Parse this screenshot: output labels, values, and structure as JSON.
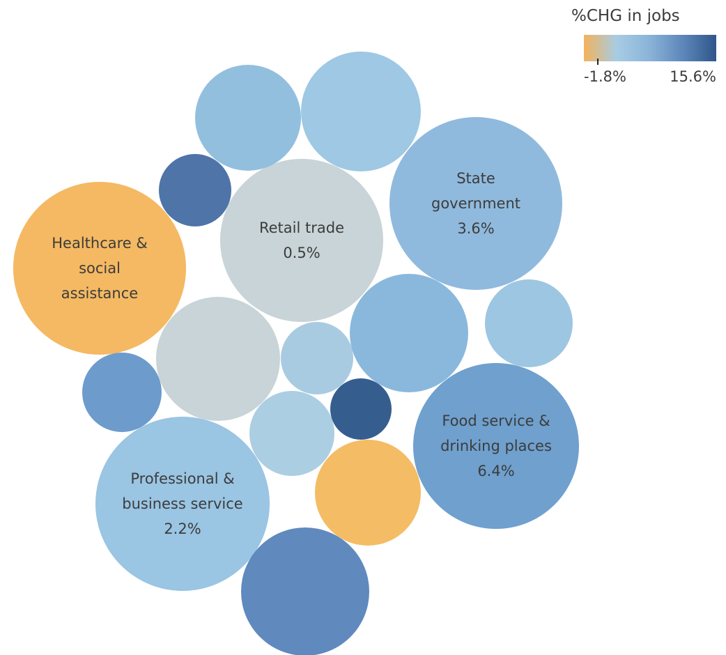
{
  "chart_data": {
    "type": "packed-bubble",
    "color_legend": {
      "title": "%CHG in jobs",
      "min_label": "-1.8%",
      "max_label": "15.6%",
      "colors": [
        "#f2b35c",
        "#a7cce4",
        "#8ab3d8",
        "#5d86ba",
        "#2f5689"
      ]
    },
    "bubbles": [
      {
        "label_lines": [
          "Healthcare &",
          "social",
          "assistance"
        ],
        "color": "#f4b962"
      },
      {
        "label_lines": [
          "Retail trade",
          "0.5%"
        ],
        "value_pct": 0.5,
        "color": "#c8d4d7"
      },
      {
        "label_lines": [
          "State",
          "government",
          "3.6%"
        ],
        "value_pct": 3.6,
        "color": "#90badd"
      },
      {
        "label_lines": [
          "Food service &",
          "drinking places",
          "6.4%"
        ],
        "value_pct": 6.4,
        "color": "#6fa0ce"
      },
      {
        "label_lines": [
          "Professional &",
          "business service",
          "2.2%"
        ],
        "value_pct": 2.2,
        "color": "#9ac5e3"
      },
      {
        "label_lines": [],
        "color": "#93bfdf"
      },
      {
        "label_lines": [],
        "color": "#9ec8e3"
      },
      {
        "label_lines": [],
        "color": "#4e74a8"
      },
      {
        "label_lines": [],
        "color": "#c8d4d7"
      },
      {
        "label_lines": [],
        "color": "#a8cbe2"
      },
      {
        "label_lines": [],
        "color": "#8ab8dc"
      },
      {
        "label_lines": [],
        "color": "#9dc6e2"
      },
      {
        "label_lines": [],
        "color": "#6d9bcc"
      },
      {
        "label_lines": [],
        "color": "#accee2"
      },
      {
        "label_lines": [],
        "color": "#355e8f"
      },
      {
        "label_lines": [],
        "color": "#f4bc64"
      },
      {
        "label_lines": [],
        "color": "#6089be"
      }
    ]
  }
}
